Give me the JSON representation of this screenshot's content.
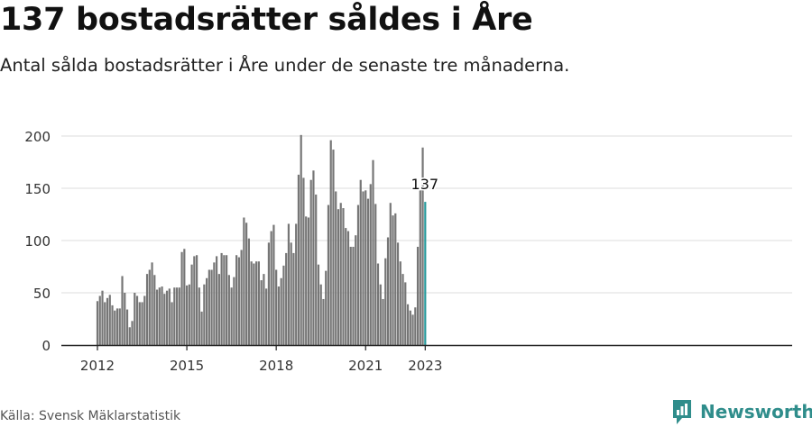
{
  "header": {
    "title": "137 bostadsrätter såldes i Åre",
    "subtitle": "Antal sålda bostadsrätter i Åre under de senaste tre månaderna."
  },
  "footer": {
    "source": "Källa: Svensk Mäklarstatistik",
    "brand": "Newsworthy",
    "brand_icon": "newsworthy-logo-icon"
  },
  "colors": {
    "bar": "#767676",
    "highlight": "#2a9a9c",
    "grid": "#dddddd",
    "axis": "#222222",
    "brand": "#2f8d8b"
  },
  "chart_data": {
    "type": "bar",
    "x_start": "2012-01",
    "x_frequency": "monthly",
    "x_ticks": [
      "2012",
      "2015",
      "2018",
      "2021",
      "2023"
    ],
    "ylim": [
      0,
      200
    ],
    "y_ticks": [
      0,
      50,
      100,
      150,
      200
    ],
    "grid": true,
    "highlight_label": "137",
    "values": [
      42,
      47,
      52,
      41,
      45,
      48,
      38,
      33,
      35,
      35,
      66,
      50,
      34,
      17,
      23,
      50,
      47,
      41,
      41,
      47,
      68,
      72,
      79,
      67,
      53,
      55,
      56,
      49,
      52,
      54,
      41,
      55,
      55,
      55,
      89,
      92,
      57,
      58,
      77,
      85,
      86,
      55,
      32,
      58,
      64,
      72,
      72,
      79,
      85,
      68,
      88,
      86,
      86,
      67,
      55,
      65,
      86,
      84,
      91,
      122,
      117,
      102,
      80,
      78,
      80,
      80,
      62,
      68,
      54,
      98,
      109,
      115,
      72,
      56,
      64,
      76,
      88,
      116,
      98,
      88,
      116,
      163,
      201,
      160,
      123,
      122,
      158,
      167,
      144,
      77,
      58,
      44,
      71,
      134,
      196,
      187,
      147,
      130,
      136,
      131,
      112,
      109,
      94,
      94,
      105,
      134,
      158,
      147,
      148,
      140,
      154,
      177,
      135,
      78,
      58,
      44,
      83,
      103,
      136,
      124,
      126,
      98,
      80,
      68,
      60,
      39,
      33,
      29,
      36,
      94,
      148,
      189,
      137
    ]
  }
}
